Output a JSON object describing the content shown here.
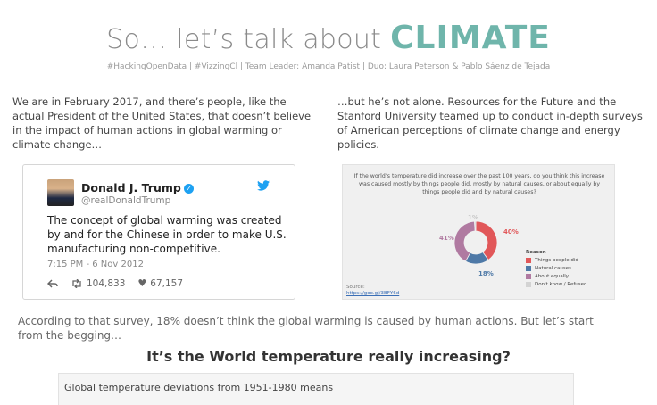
{
  "header": {
    "title_prefix": "So… let’s talk about ",
    "title_accent": "CLIMATE",
    "subtitle": "#HackingOpenData | #VizzingCl | Team Leader: Amanda Patist | Duo: Laura Peterson & Pablo Sáenz de Tejada"
  },
  "intro_left": "We are in February 2017, and there’s people, like the actual President of the United States, that doesn’t believe in the impact of human actions in global warming or climate change…",
  "intro_right": "…but he’s not alone. Resources for the Future and the Stanford University teamed up to conduct in-depth surveys of American perceptions of climate change and energy policies.",
  "tweet": {
    "name": "Donald J. Trump",
    "handle": "@realDonaldTrump",
    "text": "The concept of global warming was created by and for the Chinese in order to make U.S. manufacturing non-competitive.",
    "time": "7:15 PM - 6 Nov 2012",
    "retweets": "104,833",
    "likes": "67,157"
  },
  "survey": {
    "question": "If the world’s temperature did increase over the past 100 years, do you think this increase was caused mostly by things people did, mostly by natural causes, or about equally by things people did and by natural causes?",
    "legend_title": "Reason",
    "source_label": "Source:",
    "source_link": "https://goo.gl/3BFY6d",
    "pct_labels": {
      "people": "40%",
      "natural": "18%",
      "equal": "41%",
      "dontknow": "1%"
    }
  },
  "chart_data": {
    "type": "pie",
    "title": "If the world’s temperature did increase over the past 100 years, do you think this increase was caused mostly by things people did, mostly by natural causes, or about equally by things people did and by natural causes?",
    "categories": [
      "Things people did",
      "Natural causes",
      "About equally",
      "Don't know / Refused"
    ],
    "values": [
      40,
      18,
      41,
      1
    ],
    "colors": [
      "#e15759",
      "#4e79a7",
      "#b07aa1",
      "#d3d3d3"
    ],
    "legend_title": "Reason",
    "legend_placement": "right"
  },
  "conclusion": "According to that survey, 18% doesn’t think the global warming is caused by human actions. But let’s start from the begging…",
  "section_heading": "It’s the World temperature really increasing?",
  "timeseries": {
    "title": "Global temperature deviations from 1951-1980 means"
  },
  "colors": {
    "accent": "#6fb5ab"
  }
}
